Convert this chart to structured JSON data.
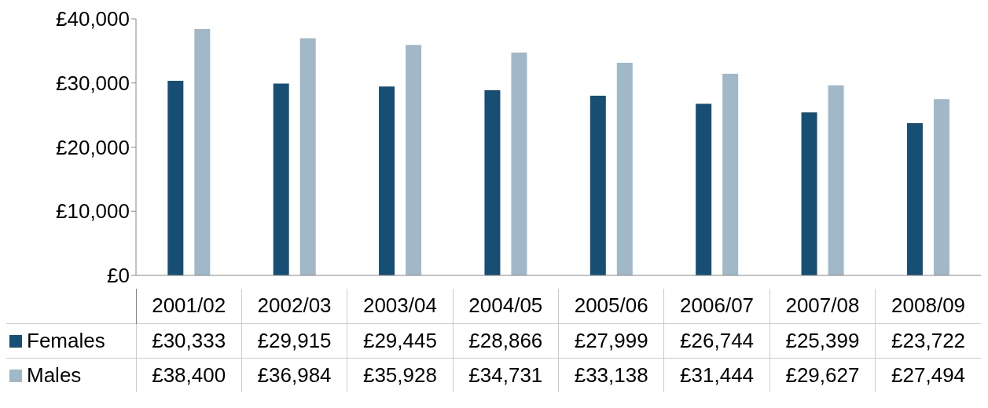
{
  "chart_data": {
    "type": "bar",
    "categories": [
      "2001/02",
      "2002/03",
      "2003/04",
      "2004/05",
      "2005/06",
      "2006/07",
      "2007/08",
      "2008/09"
    ],
    "series": [
      {
        "name": "Females",
        "color": "#164f73",
        "values": [
          30333,
          29915,
          29445,
          28866,
          27999,
          26744,
          25399,
          23722
        ],
        "value_labels": [
          "£30,333",
          "£29,915",
          "£29,445",
          "£28,866",
          "£27,999",
          "£26,744",
          "£25,399",
          "£23,722"
        ]
      },
      {
        "name": "Males",
        "color": "#a1b8c8",
        "values": [
          38400,
          36984,
          35928,
          34731,
          33138,
          31444,
          29627,
          27494
        ],
        "value_labels": [
          "£38,400",
          "£36,984",
          "£35,928",
          "£34,731",
          "£33,138",
          "£31,444",
          "£29,627",
          "£27,494"
        ]
      }
    ],
    "ylim": [
      0,
      40000
    ],
    "yticks": [
      {
        "value": 0,
        "label": "£0"
      },
      {
        "value": 10000,
        "label": "£10,000"
      },
      {
        "value": 20000,
        "label": "£20,000"
      },
      {
        "value": 30000,
        "label": "£30,000"
      },
      {
        "value": 40000,
        "label": "£40,000"
      }
    ],
    "grid": false,
    "legend": "bottom"
  }
}
